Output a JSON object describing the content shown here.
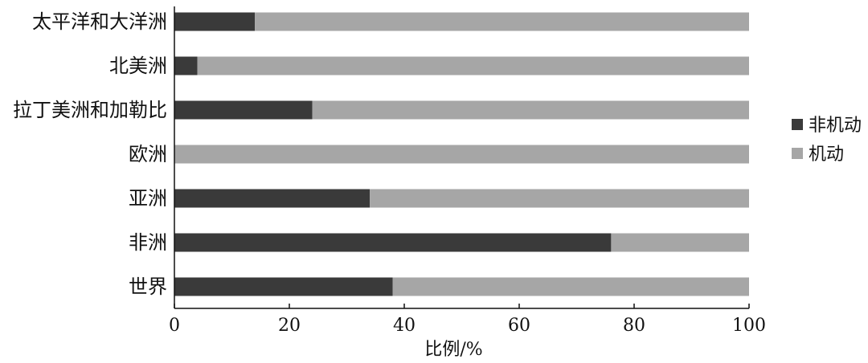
{
  "chart_data": {
    "type": "bar",
    "orientation": "horizontal",
    "stacked": true,
    "categories": [
      "太平洋和大洋洲",
      "北美洲",
      "拉丁美洲和加勒比",
      "欧洲",
      "亚洲",
      "非洲",
      "世界"
    ],
    "series": [
      {
        "name": "非机动",
        "values": [
          14,
          4,
          24,
          0,
          34,
          76,
          38
        ],
        "color": "#3a3a3a"
      },
      {
        "name": "机动",
        "values": [
          86,
          96,
          76,
          100,
          66,
          24,
          62
        ],
        "color": "#a6a6a6"
      }
    ],
    "xlabel": "比例/%",
    "xlim": [
      0,
      100
    ],
    "xticks": [
      0,
      20,
      40,
      60,
      80,
      100
    ],
    "grid": false,
    "legend_position": "right"
  }
}
